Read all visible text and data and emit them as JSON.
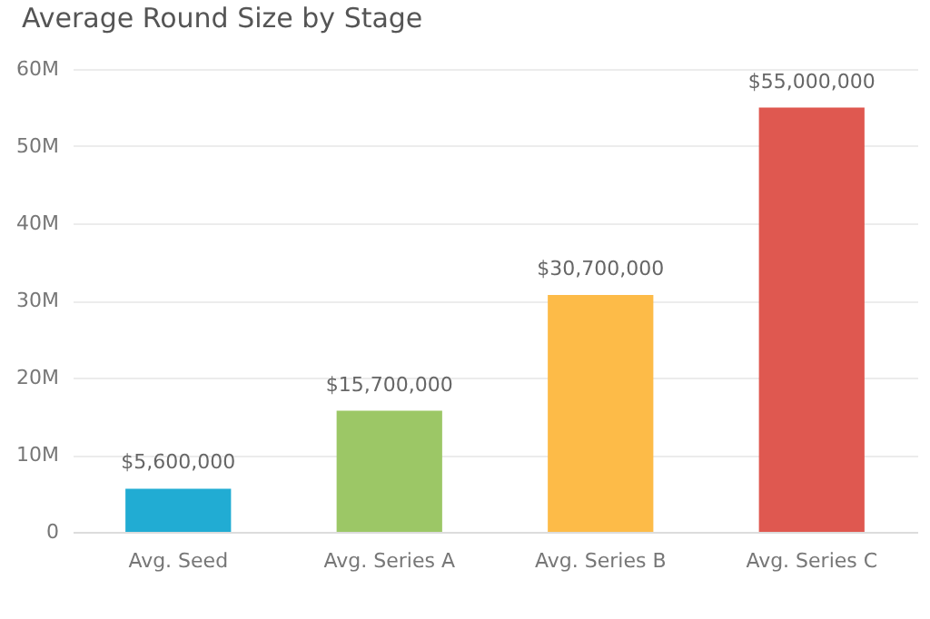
{
  "chart_data": {
    "type": "bar",
    "title": "Average Round Size by Stage",
    "categories": [
      "Avg. Seed",
      "Avg. Series A",
      "Avg. Series B",
      "Avg. Series C"
    ],
    "values": [
      5600000,
      15700000,
      30700000,
      55000000
    ],
    "colors": [
      "#21acd3",
      "#9cc766",
      "#fdbb48",
      "#df5850"
    ],
    "value_labels": [
      "$5,600,000",
      "$15,700,000",
      "$30,700,000",
      "$55,000,000"
    ],
    "ylim": [
      0,
      60000000
    ],
    "yticks": [
      {
        "value": 0,
        "label": "0"
      },
      {
        "value": 10000000,
        "label": "10M"
      },
      {
        "value": 20000000,
        "label": "20M"
      },
      {
        "value": 30000000,
        "label": "30M"
      },
      {
        "value": 40000000,
        "label": "40M"
      },
      {
        "value": 50000000,
        "label": "50M"
      },
      {
        "value": 60000000,
        "label": "60M"
      }
    ],
    "grid": "y",
    "legend": false
  }
}
